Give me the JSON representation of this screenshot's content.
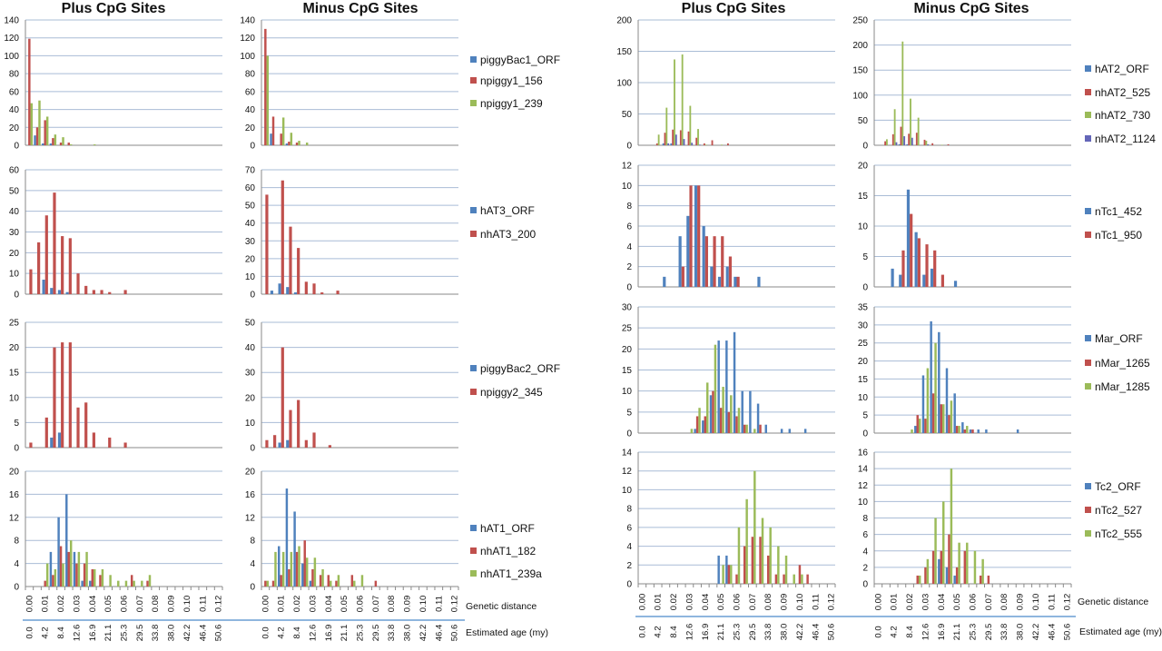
{
  "titles": {
    "left_plus": "Plus CpG Sites",
    "left_minus": "Minus CpG Sites",
    "right_plus": "Plus CpG Sites",
    "right_minus": "Minus CpG Sites"
  },
  "axis_labels": {
    "left_genetic": "Genetic distance",
    "left_age": "Estimated age (my)",
    "right_genetic": "Genetic distance",
    "right_age": "Estimated age (my)"
  },
  "colors": {
    "blue": "#4f81bd",
    "red": "#c0504d",
    "green": "#9bbb59",
    "purple": "#6466b8"
  },
  "chart_data": {
    "type": "bar",
    "bins": 25,
    "x_genetic_ticks": [
      "0.00",
      "0.01",
      "0.02",
      "0.03",
      "0.04",
      "0.05",
      "0.06",
      "0.07",
      "0.08",
      "0.09",
      "0.10",
      "0.11",
      "0.12"
    ],
    "x_age_ticks": [
      "0.0",
      "4.2",
      "8.4",
      "12.6",
      "16.9",
      "21.1",
      "25.3",
      "29.5",
      "33.8",
      "38.0",
      "42.2",
      "46.4",
      "50.6"
    ],
    "xlabel": "Genetic distance",
    "xlabel2": "Estimated age (my)",
    "grid": true,
    "legend_placement": "right",
    "rows": [
      {
        "series": [
          "piggyBac1_ORF",
          "npiggy1_156",
          "npiggy1_239"
        ],
        "colors": [
          "blue",
          "red",
          "green"
        ],
        "plus": {
          "ylim": [
            0,
            140
          ],
          "ystep": 20,
          "values": [
            [
              0,
              11,
              2,
              2
            ],
            [
              119,
              20,
              28,
              8,
              3,
              3
            ],
            [
              47,
              50,
              32,
              12,
              9,
              1,
              0,
              0,
              1
            ]
          ]
        },
        "minus": {
          "ylim": [
            0,
            140
          ],
          "ystep": 20,
          "values": [
            [
              0,
              13,
              0,
              2
            ],
            [
              130,
              32,
              13,
              4,
              3
            ],
            [
              100,
              0,
              31,
              14,
              5,
              3
            ]
          ]
        }
      },
      {
        "series": [
          "hAT3_ORF",
          "nhAT3_200"
        ],
        "colors": [
          "blue",
          "red"
        ],
        "plus": {
          "ylim": [
            0,
            60
          ],
          "ystep": 10,
          "values": [
            [
              0,
              0,
              7,
              3,
              2,
              1
            ],
            [
              12,
              25,
              38,
              49,
              28,
              27,
              10,
              4,
              2,
              2,
              1,
              0,
              2
            ]
          ]
        },
        "minus": {
          "ylim": [
            0,
            70
          ],
          "ystep": 10,
          "values": [
            [
              0,
              2,
              6,
              4,
              1
            ],
            [
              56,
              0,
              64,
              38,
              26,
              7,
              6,
              1,
              0,
              2
            ]
          ]
        }
      },
      {
        "series": [
          "piggyBac2_ORF",
          "npiggy2_345"
        ],
        "colors": [
          "blue",
          "red"
        ],
        "plus": {
          "ylim": [
            0,
            25
          ],
          "ystep": 5,
          "values": [
            [
              0,
              0,
              0,
              2,
              3
            ],
            [
              1,
              0,
              6,
              20,
              21,
              21,
              8,
              9,
              3,
              0,
              2,
              0,
              1
            ]
          ]
        },
        "minus": {
          "ylim": [
            0,
            50
          ],
          "ystep": 10,
          "values": [
            [
              0,
              0,
              2,
              3
            ],
            [
              3,
              5,
              40,
              15,
              19,
              3,
              6,
              0,
              1
            ]
          ]
        }
      },
      {
        "series": [
          "hAT1_ORF",
          "nhAT1_182",
          "nhAT1_239a"
        ],
        "colors": [
          "blue",
          "red",
          "green"
        ],
        "plus": {
          "ylim": [
            0,
            20
          ],
          "ystep": 4,
          "values": [
            [
              0,
              0,
              0,
              6,
              12,
              16,
              6,
              1,
              1
            ],
            [
              0,
              0,
              1,
              2,
              7,
              6,
              4,
              4,
              3,
              2,
              0,
              0,
              0,
              2,
              0,
              1
            ],
            [
              0,
              0,
              4,
              3,
              4,
              8,
              6,
              6,
              3,
              3,
              2,
              1,
              1,
              1,
              1,
              2
            ]
          ]
        },
        "minus": {
          "ylim": [
            0,
            20
          ],
          "ystep": 4,
          "values": [
            [
              0,
              0,
              7,
              17,
              13,
              4,
              1
            ],
            [
              1,
              1,
              2,
              3,
              6,
              8,
              3,
              2,
              2,
              1,
              0,
              2,
              0,
              0,
              1
            ],
            [
              1,
              6,
              6,
              6,
              7,
              5,
              5,
              3,
              1,
              2,
              0,
              1,
              2
            ]
          ]
        }
      },
      {
        "series": [
          "hAT2_ORF",
          "nhAT2_525",
          "nhAT2_730",
          "nhAT2_1124"
        ],
        "colors": [
          "blue",
          "red",
          "green",
          "purple"
        ],
        "plus": {
          "ylim": [
            0,
            200
          ],
          "ystep": 50,
          "values": [
            [
              0,
              0,
              0,
              3,
              3
            ],
            [
              0,
              0,
              3,
              20,
              25,
              24,
              22,
              12,
              3,
              8,
              0,
              3
            ],
            [
              0,
              0,
              17,
              60,
              137,
              145,
              63,
              26,
              1,
              0,
              1
            ],
            [
              0,
              0,
              0,
              3,
              17,
              10,
              4,
              1
            ]
          ]
        },
        "minus": {
          "ylim": [
            0,
            250
          ],
          "ystep": 50,
          "values": [
            [
              0,
              0,
              0,
              2,
              2
            ],
            [
              0,
              8,
              22,
              37,
              23,
              25,
              11,
              4,
              0,
              2
            ],
            [
              0,
              12,
              72,
              207,
              93,
              55,
              9,
              0,
              1
            ],
            [
              0,
              0,
              6,
              18,
              15,
              0,
              2
            ]
          ]
        }
      },
      {
        "series": [
          "nTc1_452",
          "nTc1_950"
        ],
        "colors": [
          "blue",
          "red"
        ],
        "plus": {
          "ylim": [
            0,
            12
          ],
          "ystep": 2,
          "values": [
            [
              0,
              0,
              0,
              1,
              0,
              5,
              7,
              10,
              6,
              2,
              1,
              2,
              1,
              0,
              0,
              1
            ],
            [
              0,
              0,
              0,
              0,
              0,
              2,
              10,
              10,
              5,
              5,
              5,
              3,
              1
            ]
          ]
        },
        "minus": {
          "ylim": [
            0,
            20
          ],
          "ystep": 5,
          "values": [
            [
              0,
              0,
              3,
              2,
              16,
              9,
              2,
              3,
              0,
              0,
              1
            ],
            [
              0,
              0,
              0,
              6,
              12,
              8,
              7,
              6,
              2
            ]
          ]
        }
      },
      {
        "series": [
          "Mar_ORF",
          "nMar_1265",
          "nMar_1285"
        ],
        "colors": [
          "blue",
          "red",
          "green"
        ],
        "plus": {
          "ylim": [
            0,
            30
          ],
          "ystep": 5,
          "values": [
            [
              0,
              0,
              0,
              0,
              0,
              0,
              0,
              1,
              3,
              9,
              22,
              22,
              24,
              10,
              10,
              7,
              2,
              0,
              1,
              1,
              0,
              1
            ],
            [
              0,
              0,
              0,
              0,
              0,
              0,
              0,
              4,
              4,
              10,
              6,
              5,
              4,
              2,
              0,
              2
            ],
            [
              0,
              0,
              0,
              0,
              0,
              0,
              1,
              6,
              12,
              21,
              11,
              9,
              6,
              2,
              1
            ]
          ]
        },
        "minus": {
          "ylim": [
            0,
            35
          ],
          "ystep": 5,
          "values": [
            [
              0,
              0,
              0,
              0,
              0,
              2,
              16,
              31,
              28,
              18,
              11,
              3,
              1,
              1,
              1,
              0,
              0,
              0,
              1
            ],
            [
              0,
              0,
              0,
              0,
              0,
              5,
              4,
              11,
              8,
              5,
              2,
              1,
              1
            ],
            [
              0,
              0,
              0,
              0,
              1,
              4,
              18,
              25,
              8,
              9,
              2,
              2
            ]
          ]
        }
      },
      {
        "series": [
          "Tc2_ORF",
          "nTc2_527",
          "nTc2_555"
        ],
        "colors": [
          "blue",
          "red",
          "green"
        ],
        "plus": {
          "ylim": [
            0,
            14
          ],
          "ystep": 2,
          "values": [
            [
              0,
              0,
              0,
              0,
              0,
              0,
              0,
              0,
              0,
              0,
              3,
              3
            ],
            [
              0,
              0,
              0,
              0,
              0,
              0,
              0,
              0,
              0,
              0,
              0,
              2,
              1,
              4,
              5,
              5,
              3,
              1,
              1,
              0,
              2,
              1
            ],
            [
              0,
              0,
              0,
              0,
              0,
              0,
              0,
              0,
              0,
              0,
              2,
              2,
              6,
              9,
              12,
              7,
              6,
              4,
              3,
              1,
              1
            ]
          ]
        },
        "minus": {
          "ylim": [
            0,
            16
          ],
          "ystep": 2,
          "values": [
            [
              0,
              0,
              0,
              0,
              0,
              0,
              0,
              0,
              3,
              2,
              1
            ],
            [
              0,
              0,
              0,
              0,
              0,
              1,
              2,
              4,
              4,
              6,
              2,
              4,
              0,
              1,
              1
            ],
            [
              0,
              0,
              0,
              0,
              0,
              1,
              3,
              8,
              10,
              14,
              5,
              5,
              4,
              3
            ]
          ]
        }
      }
    ]
  }
}
